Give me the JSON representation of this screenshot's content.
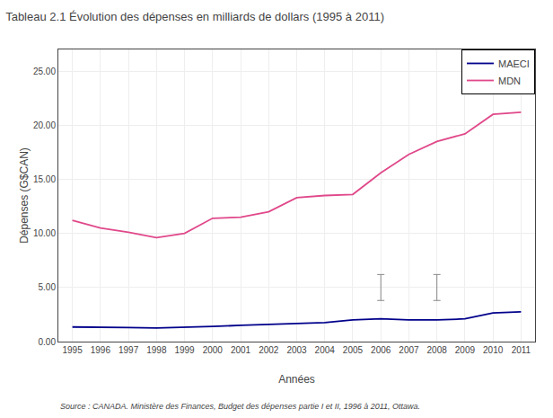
{
  "chart_data": {
    "type": "line",
    "title": "Tableau 2.1 Évolution des dépenses en milliards de dollars (1995 à 2011)",
    "annotations": [
      "Source : CANADA. Ministère des Finances, Budget des dépenses partie I et II, 1996 à 2011, Ottawa."
    ],
    "xlabel": "Années",
    "ylabel": "Dépenses (G$CAN)",
    "x": [
      1995,
      1996,
      1997,
      1998,
      1999,
      2000,
      2001,
      2002,
      2003,
      2004,
      2005,
      2006,
      2007,
      2008,
      2009,
      2010,
      2011
    ],
    "series": [
      {
        "name": "MDN",
        "color": "#e0488a",
        "values": [
          11.2,
          10.5,
          10.1,
          9.6,
          10.0,
          11.4,
          11.5,
          12.0,
          13.3,
          13.5,
          13.6,
          15.6,
          17.3,
          18.5,
          19.2,
          21.0,
          21.2
        ]
      },
      {
        "name": "MAECI",
        "color": "#00008b",
        "values": [
          1.35,
          1.35,
          1.3,
          1.25,
          1.3,
          1.4,
          1.5,
          1.6,
          1.7,
          1.75,
          2.0,
          2.1,
          2.0,
          2.0,
          2.1,
          2.65,
          2.75
        ]
      }
    ],
    "error_bars": [
      {
        "x": 2006,
        "y": 5.0,
        "error": 1.2
      },
      {
        "x": 2008,
        "y": 5.0,
        "error": 1.2
      }
    ],
    "xlim": [
      1994.5,
      2011.5
    ],
    "xticks": [
      1995,
      1996,
      1997,
      1998,
      1999,
      2000,
      2001,
      2002,
      2003,
      2004,
      2005,
      2006,
      2007,
      2008,
      2009,
      2010,
      2011
    ],
    "ylim": [
      0,
      27
    ],
    "yticks": [
      {
        "value": 0,
        "label": "0.00"
      },
      {
        "value": 5,
        "label": "5.00"
      },
      {
        "value": 10,
        "label": "10.00"
      },
      {
        "value": 15,
        "label": "15.00"
      },
      {
        "value": 20,
        "label": "20.00"
      },
      {
        "value": 25,
        "label": "25.00"
      }
    ],
    "grid": true,
    "legend": "upper right"
  }
}
